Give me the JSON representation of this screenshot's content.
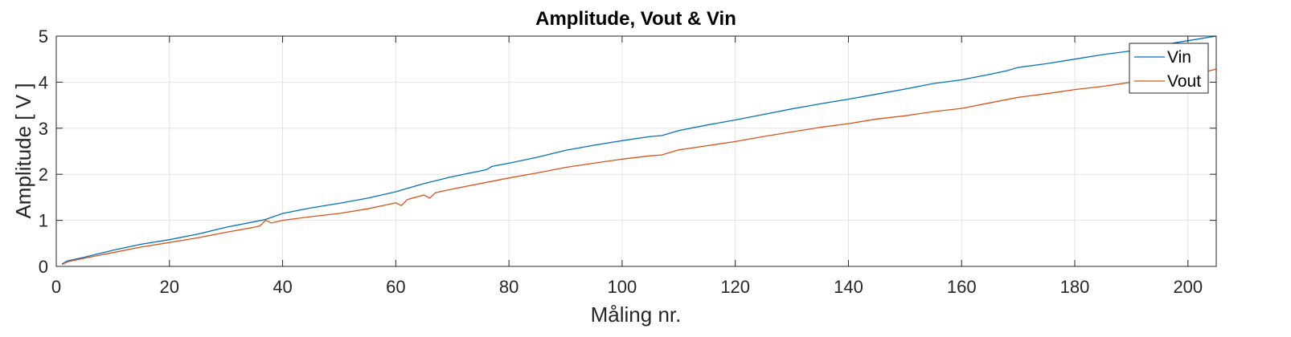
{
  "chart_data": {
    "type": "line",
    "title": "Amplitude, Vout & Vin",
    "xlabel": "Måling nr.",
    "ylabel": "Amplitude [ V ]",
    "xlim": [
      0,
      205
    ],
    "ylim": [
      0,
      5
    ],
    "x_ticks": [
      "0",
      "20",
      "40",
      "60",
      "80",
      "100",
      "120",
      "140",
      "160",
      "180",
      "200"
    ],
    "y_ticks": [
      "0",
      "1",
      "2",
      "3",
      "4",
      "5"
    ],
    "grid": true,
    "legend_position": "top-right",
    "series": [
      {
        "name": "Vin",
        "color": "#0072bd",
        "points": [
          [
            1,
            0.05
          ],
          [
            2,
            0.12
          ],
          [
            5,
            0.2
          ],
          [
            10,
            0.35
          ],
          [
            15,
            0.48
          ],
          [
            20,
            0.58
          ],
          [
            25,
            0.7
          ],
          [
            30,
            0.85
          ],
          [
            35,
            0.97
          ],
          [
            37,
            1.02
          ],
          [
            40,
            1.15
          ],
          [
            45,
            1.27
          ],
          [
            50,
            1.37
          ],
          [
            55,
            1.48
          ],
          [
            60,
            1.62
          ],
          [
            65,
            1.8
          ],
          [
            70,
            1.95
          ],
          [
            76,
            2.1
          ],
          [
            77,
            2.17
          ],
          [
            80,
            2.24
          ],
          [
            85,
            2.37
          ],
          [
            90,
            2.52
          ],
          [
            95,
            2.63
          ],
          [
            100,
            2.73
          ],
          [
            105,
            2.82
          ],
          [
            107,
            2.84
          ],
          [
            110,
            2.95
          ],
          [
            115,
            3.07
          ],
          [
            120,
            3.18
          ],
          [
            125,
            3.3
          ],
          [
            130,
            3.42
          ],
          [
            135,
            3.53
          ],
          [
            140,
            3.63
          ],
          [
            145,
            3.74
          ],
          [
            150,
            3.85
          ],
          [
            155,
            3.97
          ],
          [
            160,
            4.05
          ],
          [
            165,
            4.17
          ],
          [
            168,
            4.25
          ],
          [
            170,
            4.32
          ],
          [
            175,
            4.4
          ],
          [
            180,
            4.5
          ],
          [
            185,
            4.6
          ],
          [
            190,
            4.68
          ],
          [
            195,
            4.8
          ],
          [
            200,
            4.9
          ],
          [
            205,
            5.0
          ]
        ]
      },
      {
        "name": "Vout",
        "color": "#d95319",
        "points": [
          [
            1,
            0.04
          ],
          [
            2,
            0.1
          ],
          [
            5,
            0.18
          ],
          [
            10,
            0.3
          ],
          [
            15,
            0.42
          ],
          [
            20,
            0.52
          ],
          [
            25,
            0.62
          ],
          [
            30,
            0.74
          ],
          [
            35,
            0.85
          ],
          [
            36,
            0.88
          ],
          [
            37,
            1.0
          ],
          [
            38,
            0.94
          ],
          [
            40,
            1.0
          ],
          [
            45,
            1.08
          ],
          [
            50,
            1.15
          ],
          [
            55,
            1.25
          ],
          [
            60,
            1.38
          ],
          [
            61,
            1.32
          ],
          [
            62,
            1.45
          ],
          [
            65,
            1.55
          ],
          [
            66,
            1.48
          ],
          [
            67,
            1.6
          ],
          [
            70,
            1.68
          ],
          [
            75,
            1.8
          ],
          [
            80,
            1.92
          ],
          [
            85,
            2.03
          ],
          [
            90,
            2.15
          ],
          [
            95,
            2.24
          ],
          [
            100,
            2.33
          ],
          [
            105,
            2.4
          ],
          [
            107,
            2.42
          ],
          [
            110,
            2.53
          ],
          [
            115,
            2.62
          ],
          [
            120,
            2.71
          ],
          [
            125,
            2.82
          ],
          [
            130,
            2.92
          ],
          [
            135,
            3.02
          ],
          [
            140,
            3.1
          ],
          [
            145,
            3.2
          ],
          [
            150,
            3.27
          ],
          [
            155,
            3.36
          ],
          [
            160,
            3.43
          ],
          [
            165,
            3.55
          ],
          [
            170,
            3.67
          ],
          [
            175,
            3.75
          ],
          [
            180,
            3.84
          ],
          [
            185,
            3.91
          ],
          [
            190,
            4.0
          ],
          [
            195,
            4.07
          ],
          [
            200,
            4.15
          ],
          [
            205,
            4.28
          ]
        ]
      }
    ]
  }
}
